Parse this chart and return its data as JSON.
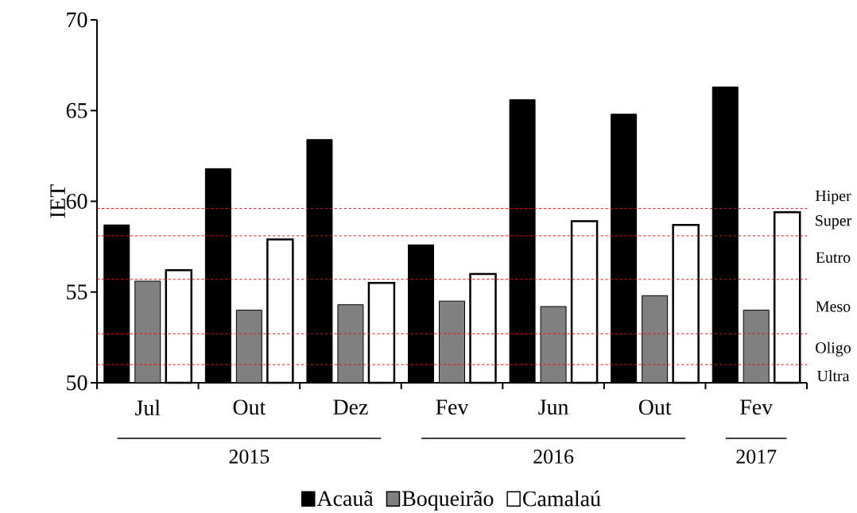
{
  "chart_data": {
    "type": "bar",
    "ylabel": "IET",
    "categories": [
      "Jul",
      "Out",
      "Dez",
      "Fev",
      "Jun",
      "Out",
      "Fev"
    ],
    "series": [
      {
        "name": "Acauã",
        "color": "#000000",
        "values": [
          58.7,
          61.8,
          63.4,
          57.6,
          65.6,
          64.8,
          66.3
        ]
      },
      {
        "name": "Boqueirão",
        "color": "#808080",
        "values": [
          55.6,
          54.0,
          54.3,
          54.5,
          54.2,
          54.8,
          54.0
        ]
      },
      {
        "name": "Camalaú",
        "color": "#ffffff",
        "values": [
          56.2,
          57.9,
          55.5,
          56.0,
          58.9,
          58.7,
          59.4
        ]
      }
    ],
    "ylim": [
      50,
      70
    ],
    "yticks": [
      50,
      55,
      60,
      65,
      70
    ],
    "grid": false,
    "legend": "bottom",
    "ref_lines": [
      {
        "axis": "y",
        "value": 59.6,
        "color": "#ff0000",
        "line_style": "dashed"
      },
      {
        "axis": "y",
        "value": 58.1,
        "color": "#ff0000",
        "line_style": "dashed"
      },
      {
        "axis": "y",
        "value": 55.7,
        "color": "#ff0000",
        "line_style": "dashed"
      },
      {
        "axis": "y",
        "value": 52.7,
        "color": "#ff0000",
        "line_style": "dashed"
      },
      {
        "axis": "y",
        "value": 51.0,
        "color": "#ff0000",
        "line_style": "dashed"
      }
    ],
    "annotations": [
      "Hiper",
      "Super",
      "Eutro",
      "Meso",
      "Oligo",
      "Ultra",
      "2015",
      "2016",
      "2017"
    ]
  }
}
